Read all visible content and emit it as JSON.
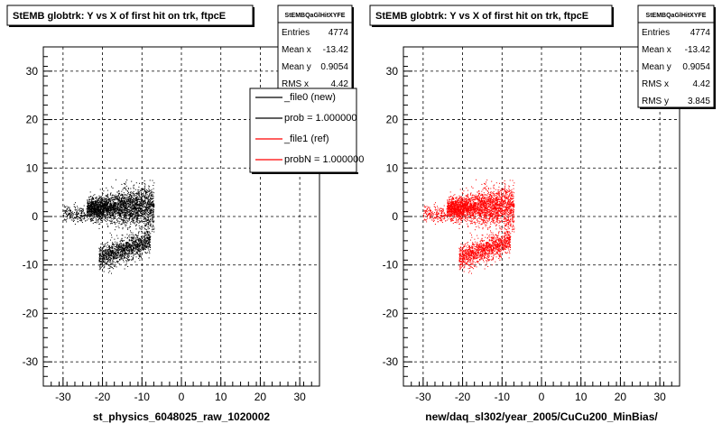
{
  "footer_text": "",
  "colors": {
    "reference": "#ff0000",
    "new": "#000000",
    "grid": "#000000"
  },
  "panels": [
    {
      "title": "StEMB globtrk: Y vs X of first hit on trk, ftpcE",
      "stats": {
        "name": "StEMBQaGlHitXYFE",
        "rows": [
          {
            "label": "Entries",
            "value": "4774"
          },
          {
            "label": "Mean x",
            "value": "-13.42"
          },
          {
            "label": "Mean y",
            "value": "0.9054"
          },
          {
            "label": "RMS x",
            "value": "4.42"
          }
        ]
      },
      "legend": [
        {
          "label": "_file0 (new)",
          "color": "#000000"
        },
        {
          "label": "prob = 1.000000",
          "color": "#000000"
        },
        {
          "label": "_file1 (ref)",
          "color": "#ff0000"
        },
        {
          "label": "probN = 1.000000",
          "color": "#ff0000"
        }
      ]
    },
    {
      "title": "StEMB globtrk: Y vs X of first hit on trk, ftpcE",
      "stats": {
        "name": "StEMBQaGlHitXYFE",
        "rows": [
          {
            "label": "Entries",
            "value": "4774"
          },
          {
            "label": "Mean x",
            "value": "-13.42"
          },
          {
            "label": "Mean y",
            "value": "0.9054"
          },
          {
            "label": "RMS x",
            "value": "4.42"
          },
          {
            "label": "RMS y",
            "value": "3.845"
          }
        ]
      }
    }
  ],
  "chart_data": [
    {
      "type": "scatter",
      "title": "StEMB globtrk: Y vs X of first hit on trk, ftpcE",
      "xlabel": "st_physics_6048025_raw_1020002",
      "ylabel": "",
      "xlim": [
        -35,
        35
      ],
      "ylim": [
        -35,
        35
      ],
      "x_ticks": [
        -30,
        -20,
        -10,
        0,
        10,
        20,
        30
      ],
      "y_ticks": [
        -30,
        -20,
        -10,
        0,
        10,
        20,
        30
      ],
      "grid": true,
      "legend": "top-right",
      "series": [
        {
          "name": "_file0 (new)",
          "color": "#000000",
          "clusters": [
            {
              "x_range": [
                -24,
                -7
              ],
              "y_center": 2,
              "y_spread": 4,
              "density": 2600
            },
            {
              "x_range": [
                -21,
                -8
              ],
              "y_center": -5,
              "y_spread": 2.5,
              "density": 1200
            },
            {
              "x_range": [
                -30,
                -20
              ],
              "y_center": 0.5,
              "y_spread": 1.5,
              "density": 350
            }
          ]
        }
      ]
    },
    {
      "type": "scatter",
      "title": "StEMB globtrk: Y vs X of first hit on trk, ftpcE",
      "xlabel": "new/daq_sl302/year_2005/CuCu200_MinBias/",
      "ylabel": "",
      "xlim": [
        -35,
        35
      ],
      "ylim": [
        -35,
        35
      ],
      "x_ticks": [
        -30,
        -20,
        -10,
        0,
        10,
        20,
        30
      ],
      "y_ticks": [
        -30,
        -20,
        -10,
        0,
        10,
        20,
        30
      ],
      "grid": true,
      "series": [
        {
          "name": "_file1 (ref)",
          "color": "#ff0000",
          "clusters": [
            {
              "x_range": [
                -24,
                -7
              ],
              "y_center": 2,
              "y_spread": 4,
              "density": 2600
            },
            {
              "x_range": [
                -21,
                -8
              ],
              "y_center": -5,
              "y_spread": 2.5,
              "density": 1200
            },
            {
              "x_range": [
                -30,
                -20
              ],
              "y_center": 0.5,
              "y_spread": 1.5,
              "density": 350
            }
          ]
        }
      ]
    }
  ]
}
